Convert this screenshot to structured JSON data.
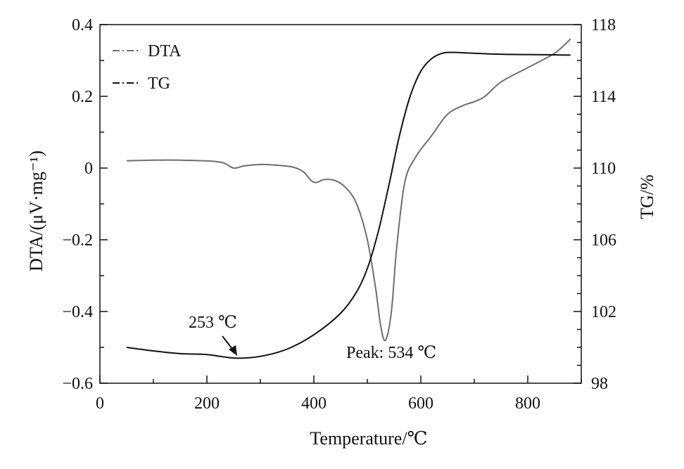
{
  "chart_data": {
    "type": "line",
    "xlabel": "Temperature/℃",
    "ylabel_left": "DTA/(μV·mg⁻¹)",
    "ylabel_right": "TG/%",
    "xlim": [
      0,
      900
    ],
    "ylim_left": [
      -0.6,
      0.4
    ],
    "ylim_right": [
      98,
      118
    ],
    "xticks": [
      0,
      200,
      400,
      600,
      800
    ],
    "yticks_left": [
      {
        "v": 0.4,
        "label": "0.4"
      },
      {
        "v": 0.2,
        "label": "0.2"
      },
      {
        "v": 0,
        "label": "0"
      },
      {
        "v": -0.2,
        "label": "−0.2"
      },
      {
        "v": -0.4,
        "label": "−0.4"
      },
      {
        "v": -0.6,
        "label": "−0.6"
      }
    ],
    "yticks_right": [
      {
        "v": 118,
        "label": "118"
      },
      {
        "v": 114,
        "label": "114"
      },
      {
        "v": 110,
        "label": "110"
      },
      {
        "v": 106,
        "label": "106"
      },
      {
        "v": 102,
        "label": "102"
      },
      {
        "v": 98,
        "label": "98"
      }
    ],
    "grid": false,
    "legend_position": "top-left",
    "series": [
      {
        "name": "DTA",
        "axis": "left",
        "color": "#6e6e6e",
        "points": [
          [
            50,
            0.02
          ],
          [
            100,
            0.022
          ],
          [
            150,
            0.022
          ],
          [
            200,
            0.02
          ],
          [
            230,
            0.015
          ],
          [
            250,
            0.0
          ],
          [
            270,
            0.006
          ],
          [
            300,
            0.01
          ],
          [
            330,
            0.008
          ],
          [
            360,
            0.003
          ],
          [
            380,
            -0.01
          ],
          [
            395,
            -0.035
          ],
          [
            405,
            -0.04
          ],
          [
            420,
            -0.032
          ],
          [
            440,
            -0.035
          ],
          [
            460,
            -0.055
          ],
          [
            480,
            -0.1
          ],
          [
            500,
            -0.2
          ],
          [
            515,
            -0.33
          ],
          [
            525,
            -0.44
          ],
          [
            534,
            -0.48
          ],
          [
            545,
            -0.4
          ],
          [
            555,
            -0.22
          ],
          [
            570,
            -0.04
          ],
          [
            590,
            0.03
          ],
          [
            620,
            0.09
          ],
          [
            650,
            0.15
          ],
          [
            680,
            0.175
          ],
          [
            700,
            0.185
          ],
          [
            720,
            0.2
          ],
          [
            750,
            0.24
          ],
          [
            800,
            0.28
          ],
          [
            850,
            0.32
          ],
          [
            880,
            0.36
          ]
        ]
      },
      {
        "name": "TG",
        "axis": "right",
        "color": "#111111",
        "points": [
          [
            50,
            100.0
          ],
          [
            100,
            99.8
          ],
          [
            150,
            99.65
          ],
          [
            200,
            99.6
          ],
          [
            253,
            99.4
          ],
          [
            300,
            99.5
          ],
          [
            350,
            99.9
          ],
          [
            400,
            100.7
          ],
          [
            450,
            101.9
          ],
          [
            480,
            103.1
          ],
          [
            500,
            104.4
          ],
          [
            520,
            106.4
          ],
          [
            540,
            109.0
          ],
          [
            560,
            111.8
          ],
          [
            580,
            114.0
          ],
          [
            600,
            115.4
          ],
          [
            620,
            116.1
          ],
          [
            640,
            116.4
          ],
          [
            660,
            116.45
          ],
          [
            700,
            116.4
          ],
          [
            750,
            116.35
          ],
          [
            800,
            116.33
          ],
          [
            880,
            116.3
          ]
        ]
      }
    ],
    "annotations": [
      {
        "id": "tg-min",
        "text": "253 ℃",
        "x": 253,
        "y": 99.4,
        "axis": "right"
      },
      {
        "id": "dta-peak",
        "text": "Peak: 534 ℃",
        "x": 534,
        "y": -0.48,
        "axis": "left"
      }
    ]
  }
}
